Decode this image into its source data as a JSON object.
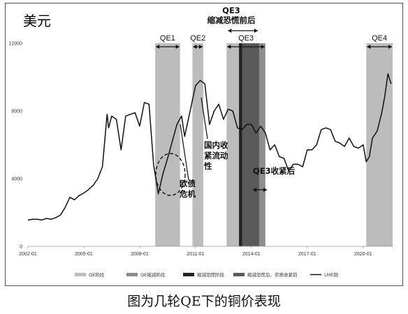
{
  "chart_data": {
    "type": "line",
    "unit_label": "美元",
    "ylim": [
      0,
      12000
    ],
    "yticks": [
      0,
      4000,
      8000,
      12000
    ],
    "xlim": [
      "2002-01",
      "2021-08"
    ],
    "xticks": [
      "2002-01",
      "2005-01",
      "2008-01",
      "2011-01",
      "2014-01",
      "2017-01",
      "2020-01"
    ],
    "series": [
      {
        "name": "LME铜",
        "color": "#111111",
        "points": [
          [
            "2002-01",
            1550
          ],
          [
            "2002-04",
            1600
          ],
          [
            "2002-07",
            1600
          ],
          [
            "2002-10",
            1560
          ],
          [
            "2003-01",
            1650
          ],
          [
            "2003-04",
            1600
          ],
          [
            "2003-07",
            1700
          ],
          [
            "2003-10",
            1850
          ],
          [
            "2004-01",
            2300
          ],
          [
            "2004-04",
            2900
          ],
          [
            "2004-07",
            2750
          ],
          [
            "2004-10",
            3000
          ],
          [
            "2005-01",
            3150
          ],
          [
            "2005-04",
            3350
          ],
          [
            "2005-07",
            3600
          ],
          [
            "2005-10",
            4000
          ],
          [
            "2006-01",
            4700
          ],
          [
            "2006-04",
            7800
          ],
          [
            "2006-05",
            7000
          ],
          [
            "2006-07",
            7700
          ],
          [
            "2006-10",
            7500
          ],
          [
            "2007-01",
            5700
          ],
          [
            "2007-04",
            7700
          ],
          [
            "2007-07",
            7800
          ],
          [
            "2007-10",
            7900
          ],
          [
            "2008-01",
            7100
          ],
          [
            "2008-04",
            8500
          ],
          [
            "2008-07",
            8400
          ],
          [
            "2008-10",
            4800
          ],
          [
            "2009-01",
            3100
          ],
          [
            "2009-04",
            4300
          ],
          [
            "2009-07",
            5200
          ],
          [
            "2009-10",
            6200
          ],
          [
            "2010-01",
            7200
          ],
          [
            "2010-04",
            7700
          ],
          [
            "2010-06",
            6500
          ],
          [
            "2010-10",
            8200
          ],
          [
            "2011-01",
            9500
          ],
          [
            "2011-04",
            9800
          ],
          [
            "2011-07",
            9600
          ],
          [
            "2011-10",
            7200
          ],
          [
            "2012-01",
            8000
          ],
          [
            "2012-04",
            8400
          ],
          [
            "2012-07",
            7500
          ],
          [
            "2012-10",
            8100
          ],
          [
            "2013-01",
            8000
          ],
          [
            "2013-04",
            7000
          ],
          [
            "2013-07",
            6900
          ],
          [
            "2013-10",
            7200
          ],
          [
            "2014-01",
            7200
          ],
          [
            "2014-04",
            6700
          ],
          [
            "2014-07",
            7100
          ],
          [
            "2014-10",
            6700
          ],
          [
            "2015-01",
            5700
          ],
          [
            "2015-04",
            6000
          ],
          [
            "2015-07",
            5300
          ],
          [
            "2015-10",
            5200
          ],
          [
            "2016-01",
            4450
          ],
          [
            "2016-04",
            4850
          ],
          [
            "2016-07",
            4850
          ],
          [
            "2016-10",
            4700
          ],
          [
            "2017-01",
            5700
          ],
          [
            "2017-04",
            5700
          ],
          [
            "2017-07",
            6000
          ],
          [
            "2017-10",
            6900
          ],
          [
            "2018-01",
            7000
          ],
          [
            "2018-04",
            6900
          ],
          [
            "2018-07",
            6200
          ],
          [
            "2018-10",
            6100
          ],
          [
            "2019-01",
            5900
          ],
          [
            "2019-04",
            6400
          ],
          [
            "2019-07",
            5900
          ],
          [
            "2019-10",
            5800
          ],
          [
            "2020-01",
            6000
          ],
          [
            "2020-03",
            5000
          ],
          [
            "2020-05",
            5300
          ],
          [
            "2020-07",
            6400
          ],
          [
            "2020-10",
            6800
          ],
          [
            "2021-01",
            7900
          ],
          [
            "2021-03",
            8900
          ],
          [
            "2021-05",
            10200
          ],
          [
            "2021-07",
            9600
          ]
        ]
      }
    ],
    "bands": [
      {
        "name": "QE1",
        "type": "QE阶段",
        "start": "2008-11",
        "end": "2010-03",
        "color": "#bcbcbc"
      },
      {
        "name": "QE2",
        "type": "QE阶段",
        "start": "2010-11",
        "end": "2011-06",
        "color": "#bcbcbc"
      },
      {
        "name": "",
        "type": "QE缩减阶段",
        "start": "2012-09",
        "end": "2013-05",
        "color": "#bcbcbc"
      },
      {
        "name": "",
        "type": "缩减恐慌阶段",
        "start": "2013-05",
        "end": "2013-07",
        "color": "#222222"
      },
      {
        "name": "",
        "type": "缩减恐慌后、实质收紧前",
        "start": "2013-07",
        "end": "2014-06",
        "color": "#5a5a5a"
      },
      {
        "name": "",
        "type": "",
        "start": "2014-06",
        "end": "2014-10",
        "color": "#8e8e8e"
      },
      {
        "name": "QE4",
        "type": "QE阶段",
        "start": "2020-03",
        "end": "2021-08",
        "color": "#bcbcbc"
      }
    ],
    "qe3_label": "QE3",
    "annotations": {
      "qe3_taper_panic": "QE3缩减恐慌前后",
      "qe3_tightening": "QE3收紧后",
      "domestic_tight_1": "国内收",
      "domestic_tight_2": "紧流动",
      "domestic_tight_3": "性",
      "euro_debt_1": "欧债",
      "euro_debt_2": "危机"
    },
    "legend": [
      {
        "label": "QE阶段",
        "color": "#bcbcbc",
        "kind": "bar"
      },
      {
        "label": "QE缩减阶段",
        "color": "#8a8a8a",
        "kind": "bar"
      },
      {
        "label": "缩减恐慌阶段",
        "color": "#222222",
        "kind": "bar"
      },
      {
        "label": "缩减恐慌后、实质收紧前",
        "color": "#5a5a5a",
        "kind": "bar"
      },
      {
        "label": "LME铜",
        "color": "#111111",
        "kind": "line"
      }
    ]
  },
  "caption": "图为几轮QE下的铜价表现"
}
